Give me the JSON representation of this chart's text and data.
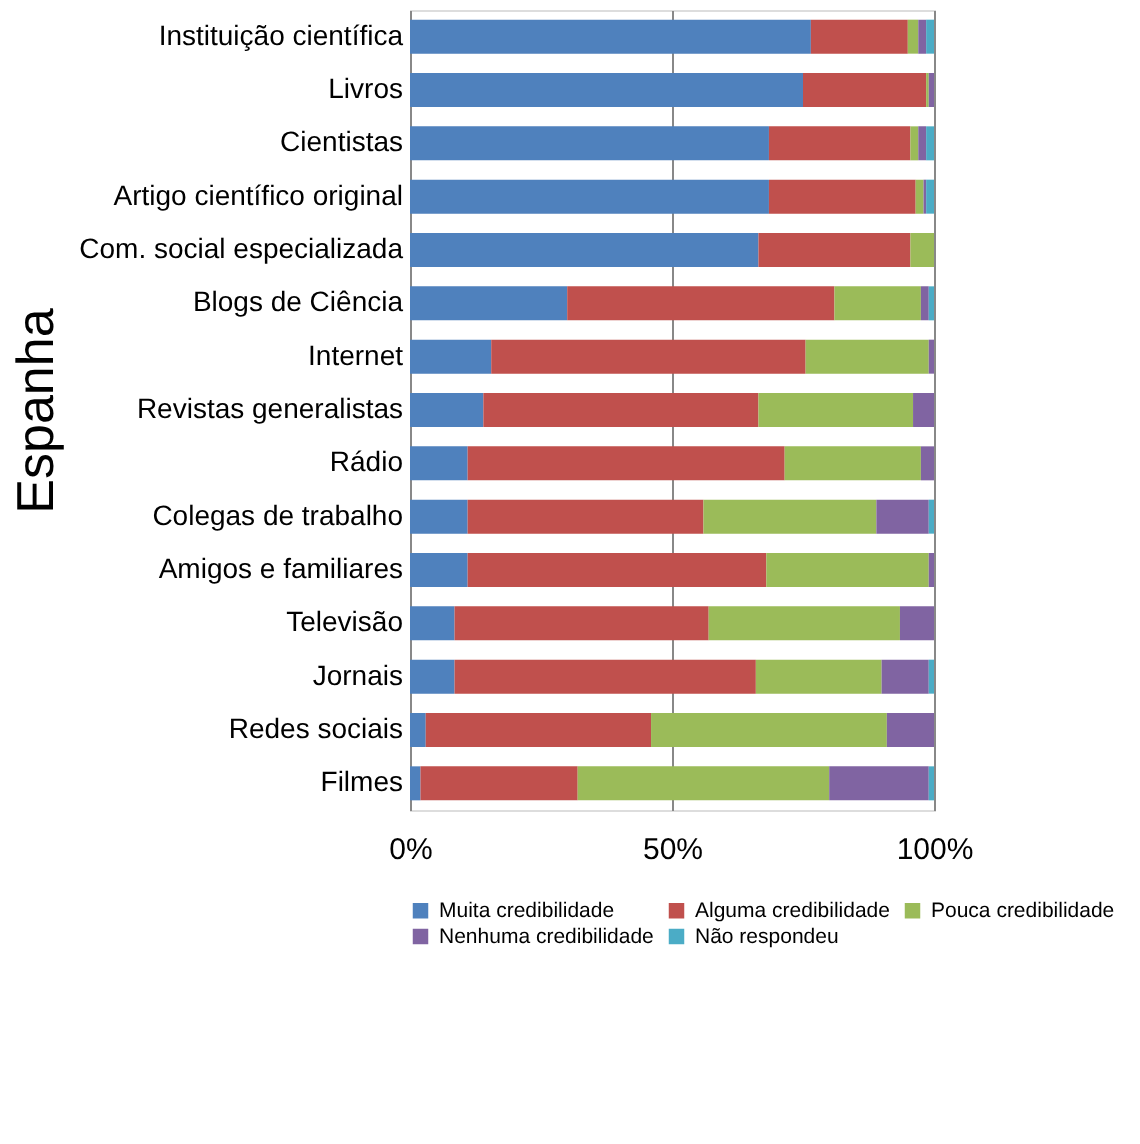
{
  "chart_data": {
    "type": "bar",
    "orientation": "horizontal",
    "stacked": true,
    "ylabel": "Espanha",
    "categories": [
      "Instituição científica",
      "Livros",
      "Cientistas",
      "Artigo científico original",
      "Com. social especializada",
      "Blogs de Ciência",
      "Internet",
      "Revistas generalistas",
      "Rádio",
      "Colegas de trabalho",
      "Amigos e familiares",
      "Televisão",
      "Jornais",
      "Redes sociais",
      "Filmes"
    ],
    "series": [
      {
        "name": "Muita credibilidade",
        "color": "#4f81bd",
        "values": [
          76.5,
          75,
          68.5,
          68.5,
          66.5,
          30,
          15.5,
          14,
          11,
          11,
          11,
          8.5,
          8.5,
          3,
          2
        ]
      },
      {
        "name": "Alguma credibilidade",
        "color": "#c0504d",
        "values": [
          18.5,
          23.5,
          27,
          28,
          29,
          51,
          60,
          52.5,
          60.5,
          45,
          57,
          48.5,
          57.5,
          43,
          30
        ]
      },
      {
        "name": "Pouca credibilidade",
        "color": "#9bbb59",
        "values": [
          2,
          0.5,
          1.5,
          1.5,
          4.5,
          16.5,
          23.5,
          29.5,
          26,
          33,
          31,
          36.5,
          24,
          45,
          48
        ]
      },
      {
        "name": "Nenhuma credibilidade",
        "color": "#8064a2",
        "values": [
          1.5,
          1,
          1.5,
          0.5,
          null,
          1.5,
          1,
          4,
          2.5,
          10,
          1,
          6.5,
          9,
          9,
          19
        ]
      },
      {
        "name": "Não respondeu",
        "color": "#4bacc6",
        "values": [
          1.5,
          null,
          1.5,
          1.5,
          null,
          1,
          null,
          null,
          null,
          1,
          null,
          null,
          1,
          null,
          1
        ]
      }
    ],
    "xlim": [
      0,
      100
    ],
    "xticks": [
      {
        "value": 0,
        "label": "0%"
      },
      {
        "value": 50,
        "label": "50%"
      },
      {
        "value": 100,
        "label": "100%"
      }
    ],
    "grid": "x",
    "legend": "bottom"
  }
}
